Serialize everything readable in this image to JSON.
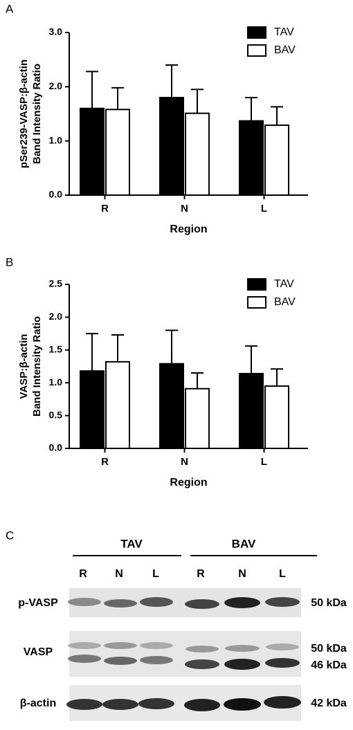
{
  "chart_data": [
    {
      "type": "bar",
      "panel": "A",
      "ylabel": [
        "pSer239-VASP:β-actin",
        "Band Intensity Ratio"
      ],
      "xlabel": "Region",
      "categories": [
        "R",
        "N",
        "L"
      ],
      "series": [
        {
          "name": "TAV",
          "color": "#000000",
          "values": [
            1.6,
            1.8,
            1.37
          ],
          "errors": [
            0.68,
            0.6,
            0.43
          ]
        },
        {
          "name": "BAV",
          "color": "#ffffff",
          "values": [
            1.58,
            1.51,
            1.29
          ],
          "errors": [
            0.4,
            0.44,
            0.34
          ]
        }
      ],
      "ylim": [
        0,
        3
      ],
      "yticks": [
        {
          "value": 0,
          "label": "0.0"
        },
        {
          "value": 1,
          "label": "1.0"
        },
        {
          "value": 2,
          "label": "2.0"
        },
        {
          "value": 3,
          "label": "3.0"
        }
      ],
      "legend": "top-right"
    },
    {
      "type": "bar",
      "panel": "B",
      "ylabel": [
        "VASP:β-actin",
        "Band Intensity Ratio"
      ],
      "xlabel": "Region",
      "categories": [
        "R",
        "N",
        "L"
      ],
      "series": [
        {
          "name": "TAV",
          "color": "#000000",
          "values": [
            1.18,
            1.29,
            1.14
          ],
          "errors": [
            0.57,
            0.51,
            0.42
          ]
        },
        {
          "name": "BAV",
          "color": "#ffffff",
          "values": [
            1.32,
            0.91,
            0.95
          ],
          "errors": [
            0.41,
            0.24,
            0.26
          ]
        }
      ],
      "ylim": [
        0,
        2.5
      ],
      "yticks": [
        {
          "value": 0,
          "label": "0.0"
        },
        {
          "value": 0.5,
          "label": "0.5"
        },
        {
          "value": 1,
          "label": "1.0"
        },
        {
          "value": 1.5,
          "label": "1.5"
        },
        {
          "value": 2,
          "label": "2.0"
        },
        {
          "value": 2.5,
          "label": "2.5"
        }
      ],
      "legend": "top-right"
    }
  ],
  "blot": {
    "panel": "C",
    "groups": [
      "TAV",
      "BAV"
    ],
    "lanes": [
      "R",
      "N",
      "L",
      "R",
      "N",
      "L"
    ],
    "rows": [
      "p-VASP",
      "VASP",
      "β-actin"
    ],
    "sizes": [
      "50 kDa",
      "50 kDa",
      "46 kDa",
      "42 kDa"
    ]
  }
}
